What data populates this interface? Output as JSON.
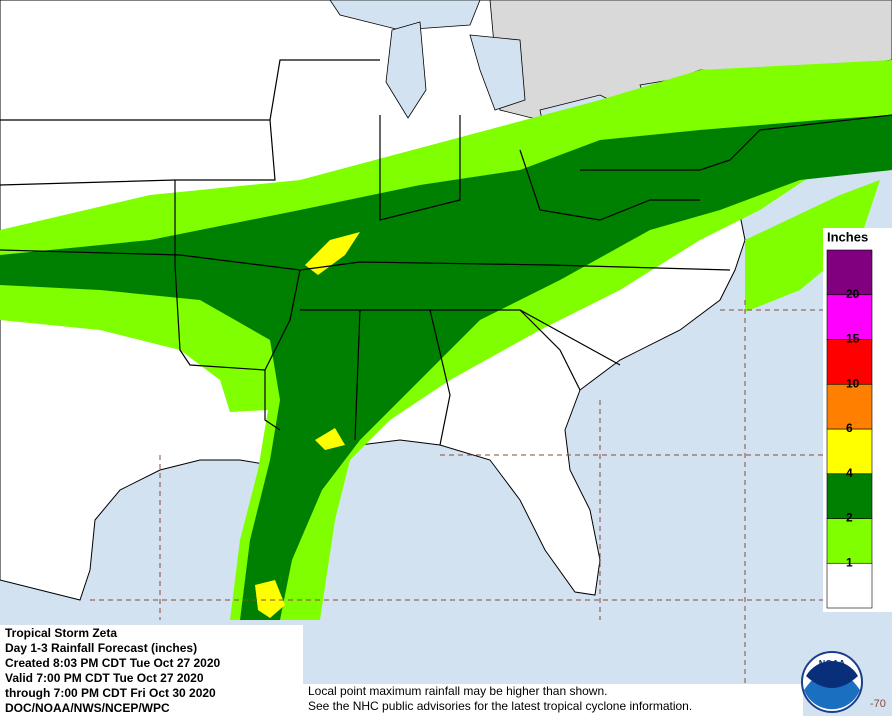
{
  "info": {
    "lines": [
      "Tropical Storm Zeta",
      "Day 1-3 Rainfall Forecast (inches)",
      "Created 8:03 PM CDT Tue Oct 27 2020",
      "Valid 7:00 PM CDT Tue Oct 27 2020",
      "through 7:00 PM CDT Fri Oct 30 2020",
      "DOC/NOAA/NWS/NCEP/WPC"
    ]
  },
  "legend": {
    "title": "Inches",
    "ticks": [
      1,
      2,
      4,
      6,
      10,
      15,
      20
    ],
    "colors": [
      "#ffffff",
      "#7fff00",
      "#008000",
      "#ffff00",
      "#ff8000",
      "#ff0000",
      "#ff00ff",
      "#800080"
    ]
  },
  "disclaimer": [
    "Local point maximum rainfall may be higher than shown.",
    "See the NHC public advisories for the latest tropical cyclone information."
  ],
  "lon_label": "-70",
  "logo": "NOAA"
}
